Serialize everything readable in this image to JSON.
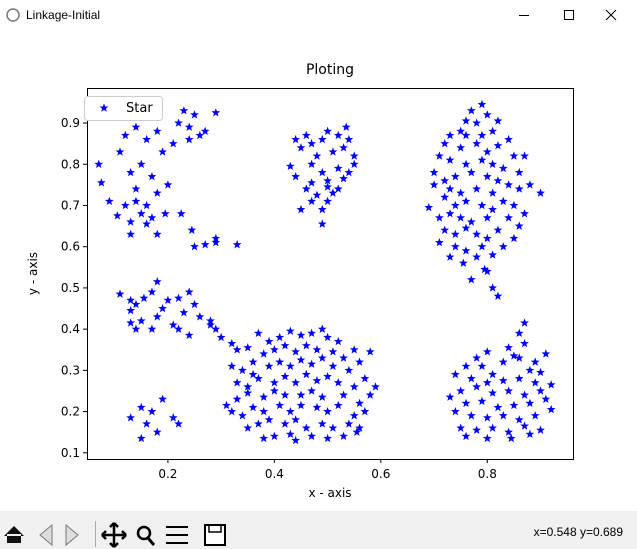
{
  "window": {
    "title": "Linkage-Initial"
  },
  "chart_data": {
    "type": "scatter",
    "title": "Ploting",
    "x_label": "x - axis",
    "y_label": "y - axis",
    "xlim": [
      0.048,
      0.961
    ],
    "ylim": [
      0.085,
      0.985
    ],
    "xticks": [
      0.2,
      0.4,
      0.6,
      0.8
    ],
    "yticks": [
      0.1,
      0.2,
      0.3,
      0.4,
      0.5,
      0.6,
      0.7,
      0.8,
      0.9
    ],
    "legend": "upper left",
    "series": [
      {
        "name": "Star",
        "color": "#0000ff",
        "marker": "star",
        "x": [
          0.07,
          0.075,
          0.09,
          0.11,
          0.12,
          0.105,
          0.13,
          0.14,
          0.14,
          0.15,
          0.16,
          0.17,
          0.16,
          0.18,
          0.18,
          0.19,
          0.2,
          0.15,
          0.13,
          0.12,
          0.13,
          0.17,
          0.195,
          0.21,
          0.22,
          0.225,
          0.23,
          0.24,
          0.24,
          0.245,
          0.25,
          0.26,
          0.29,
          0.27,
          0.18,
          0.25,
          0.27,
          0.29,
          0.29,
          0.33,
          0.16,
          0.14,
          0.44,
          0.45,
          0.46,
          0.47,
          0.49,
          0.5,
          0.52,
          0.535,
          0.54,
          0.55,
          0.53,
          0.51,
          0.48,
          0.43,
          0.44,
          0.46,
          0.47,
          0.49,
          0.5,
          0.52,
          0.54,
          0.55,
          0.45,
          0.47,
          0.49,
          0.49,
          0.5,
          0.51,
          0.52,
          0.53,
          0.5,
          0.48,
          0.47,
          0.79,
          0.77,
          0.8,
          0.76,
          0.78,
          0.75,
          0.82,
          0.73,
          0.76,
          0.79,
          0.81,
          0.84,
          0.72,
          0.75,
          0.78,
          0.8,
          0.82,
          0.85,
          0.87,
          0.71,
          0.73,
          0.76,
          0.79,
          0.81,
          0.83,
          0.86,
          0.88,
          0.9,
          0.7,
          0.72,
          0.74,
          0.77,
          0.8,
          0.82,
          0.84,
          0.86,
          0.7,
          0.73,
          0.75,
          0.78,
          0.81,
          0.83,
          0.85,
          0.87,
          0.69,
          0.72,
          0.74,
          0.76,
          0.79,
          0.81,
          0.84,
          0.86,
          0.71,
          0.73,
          0.75,
          0.77,
          0.8,
          0.82,
          0.85,
          0.72,
          0.74,
          0.76,
          0.78,
          0.8,
          0.83,
          0.71,
          0.74,
          0.76,
          0.79,
          0.81,
          0.73,
          0.755,
          0.78,
          0.795,
          0.8,
          0.77,
          0.81,
          0.82,
          0.11,
          0.13,
          0.14,
          0.155,
          0.17,
          0.18,
          0.2,
          0.19,
          0.22,
          0.23,
          0.24,
          0.25,
          0.26,
          0.28,
          0.13,
          0.15,
          0.14,
          0.13,
          0.17,
          0.18,
          0.21,
          0.22,
          0.24,
          0.29,
          0.3,
          0.32,
          0.28,
          0.37,
          0.39,
          0.41,
          0.43,
          0.45,
          0.47,
          0.49,
          0.5,
          0.52,
          0.55,
          0.58,
          0.33,
          0.35,
          0.36,
          0.38,
          0.4,
          0.42,
          0.44,
          0.46,
          0.48,
          0.51,
          0.53,
          0.56,
          0.32,
          0.34,
          0.36,
          0.39,
          0.41,
          0.43,
          0.45,
          0.47,
          0.49,
          0.51,
          0.54,
          0.57,
          0.33,
          0.35,
          0.37,
          0.4,
          0.42,
          0.44,
          0.46,
          0.48,
          0.5,
          0.52,
          0.55,
          0.59,
          0.31,
          0.33,
          0.35,
          0.38,
          0.4,
          0.42,
          0.45,
          0.47,
          0.49,
          0.53,
          0.56,
          0.58,
          0.32,
          0.34,
          0.36,
          0.38,
          0.41,
          0.43,
          0.45,
          0.48,
          0.5,
          0.52,
          0.55,
          0.57,
          0.35,
          0.37,
          0.39,
          0.42,
          0.44,
          0.46,
          0.49,
          0.51,
          0.54,
          0.56,
          0.38,
          0.4,
          0.43,
          0.44,
          0.47,
          0.5,
          0.53,
          0.555,
          0.13,
          0.15,
          0.16,
          0.15,
          0.17,
          0.18,
          0.19,
          0.21,
          0.22,
          0.87,
          0.86,
          0.87,
          0.84,
          0.8,
          0.85,
          0.83,
          0.86,
          0.89,
          0.91,
          0.78,
          0.76,
          0.79,
          0.81,
          0.88,
          0.9,
          0.74,
          0.77,
          0.8,
          0.83,
          0.86,
          0.89,
          0.92,
          0.75,
          0.78,
          0.81,
          0.84,
          0.87,
          0.9,
          0.73,
          0.76,
          0.79,
          0.82,
          0.85,
          0.88,
          0.91,
          0.92,
          0.74,
          0.77,
          0.8,
          0.83,
          0.86,
          0.89,
          0.75,
          0.78,
          0.81,
          0.84,
          0.87,
          0.9,
          0.76,
          0.8,
          0.845,
          0.88
        ],
        "values": [
          0.8,
          0.755,
          0.71,
          0.83,
          0.87,
          0.675,
          0.78,
          0.74,
          0.89,
          0.8,
          0.86,
          0.77,
          0.7,
          0.88,
          0.73,
          0.83,
          0.75,
          0.68,
          0.66,
          0.7,
          0.63,
          0.67,
          0.68,
          0.85,
          0.9,
          0.68,
          0.93,
          0.89,
          0.86,
          0.64,
          0.92,
          0.87,
          0.925,
          0.88,
          0.63,
          0.6,
          0.605,
          0.61,
          0.62,
          0.605,
          0.655,
          0.71,
          0.86,
          0.84,
          0.87,
          0.85,
          0.86,
          0.88,
          0.87,
          0.89,
          0.86,
          0.82,
          0.84,
          0.83,
          0.82,
          0.795,
          0.77,
          0.74,
          0.8,
          0.78,
          0.76,
          0.79,
          0.78,
          0.8,
          0.69,
          0.71,
          0.69,
          0.655,
          0.71,
          0.73,
          0.74,
          0.765,
          0.745,
          0.725,
          0.755,
          0.945,
          0.93,
          0.92,
          0.905,
          0.9,
          0.88,
          0.905,
          0.87,
          0.87,
          0.87,
          0.88,
          0.86,
          0.85,
          0.84,
          0.85,
          0.83,
          0.845,
          0.82,
          0.82,
          0.82,
          0.81,
          0.8,
          0.81,
          0.8,
          0.79,
          0.78,
          0.75,
          0.73,
          0.78,
          0.76,
          0.77,
          0.78,
          0.77,
          0.76,
          0.75,
          0.74,
          0.75,
          0.74,
          0.73,
          0.74,
          0.73,
          0.71,
          0.7,
          0.68,
          0.695,
          0.72,
          0.7,
          0.71,
          0.7,
          0.69,
          0.67,
          0.65,
          0.67,
          0.68,
          0.67,
          0.66,
          0.67,
          0.64,
          0.62,
          0.64,
          0.63,
          0.645,
          0.63,
          0.62,
          0.6,
          0.61,
          0.6,
          0.59,
          0.6,
          0.58,
          0.575,
          0.56,
          0.575,
          0.545,
          0.54,
          0.52,
          0.5,
          0.48,
          0.485,
          0.47,
          0.46,
          0.475,
          0.49,
          0.515,
          0.47,
          0.45,
          0.475,
          0.44,
          0.49,
          0.46,
          0.43,
          0.42,
          0.445,
          0.42,
          0.4,
          0.415,
          0.4,
          0.43,
          0.41,
          0.4,
          0.385,
          0.4,
          0.38,
          0.365,
          0.41,
          0.39,
          0.37,
          0.38,
          0.395,
          0.385,
          0.39,
          0.4,
          0.38,
          0.37,
          0.35,
          0.345,
          0.35,
          0.355,
          0.32,
          0.34,
          0.35,
          0.36,
          0.345,
          0.36,
          0.35,
          0.345,
          0.33,
          0.32,
          0.31,
          0.3,
          0.29,
          0.31,
          0.32,
          0.31,
          0.325,
          0.315,
          0.33,
          0.31,
          0.3,
          0.28,
          0.27,
          0.26,
          0.28,
          0.27,
          0.285,
          0.27,
          0.29,
          0.275,
          0.285,
          0.27,
          0.26,
          0.26,
          0.215,
          0.23,
          0.245,
          0.235,
          0.25,
          0.24,
          0.24,
          0.25,
          0.235,
          0.24,
          0.22,
          0.24,
          0.2,
          0.19,
          0.21,
          0.2,
          0.215,
          0.2,
          0.215,
          0.21,
          0.2,
          0.215,
          0.19,
          0.2,
          0.16,
          0.17,
          0.18,
          0.17,
          0.18,
          0.16,
          0.17,
          0.16,
          0.17,
          0.16,
          0.135,
          0.14,
          0.145,
          0.13,
          0.14,
          0.135,
          0.14,
          0.15,
          0.185,
          0.21,
          0.17,
          0.135,
          0.2,
          0.15,
          0.23,
          0.185,
          0.17,
          0.415,
          0.39,
          0.365,
          0.355,
          0.345,
          0.335,
          0.32,
          0.33,
          0.32,
          0.34,
          0.33,
          0.31,
          0.31,
          0.29,
          0.3,
          0.295,
          0.29,
          0.28,
          0.27,
          0.275,
          0.28,
          0.27,
          0.265,
          0.25,
          0.26,
          0.245,
          0.25,
          0.24,
          0.25,
          0.235,
          0.22,
          0.225,
          0.21,
          0.215,
          0.22,
          0.23,
          0.205,
          0.2,
          0.19,
          0.185,
          0.19,
          0.18,
          0.19,
          0.16,
          0.155,
          0.16,
          0.15,
          0.165,
          0.155,
          0.14,
          0.135,
          0.135,
          0.145
        ]
      }
    ]
  },
  "toolbar": {
    "status": "x=0.548 y=0.689"
  }
}
